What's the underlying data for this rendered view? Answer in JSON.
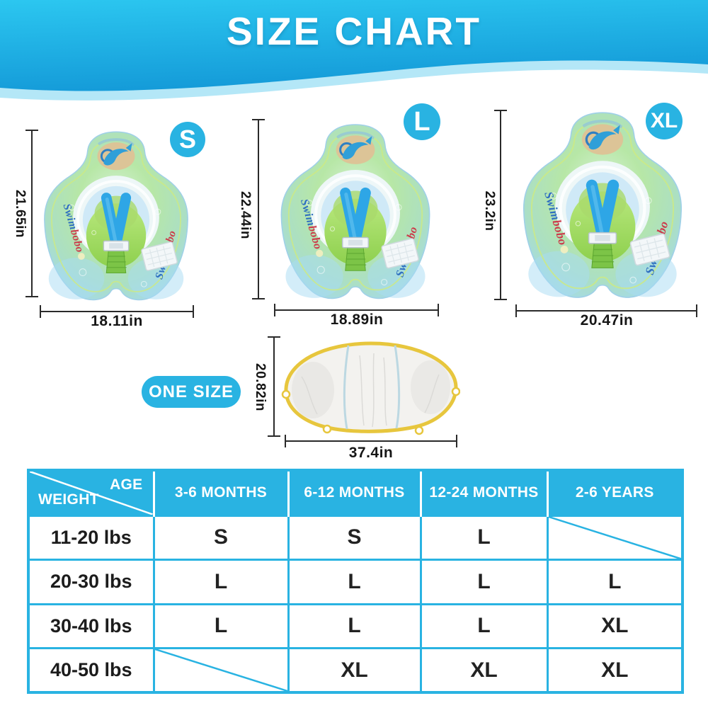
{
  "banner": {
    "title": "SIZE CHART"
  },
  "brand": {
    "name_part1": "Swim",
    "name_part2": "bobo"
  },
  "floats": [
    {
      "badge": "S",
      "height_label": "21.65in",
      "width_label": "18.11in"
    },
    {
      "badge": "L",
      "height_label": "22.44in",
      "width_label": "18.89in"
    },
    {
      "badge": "XL",
      "height_label": "23.2in",
      "width_label": "20.47in"
    }
  ],
  "canopy": {
    "badge": "ONE SIZE",
    "height_label": "20.82in",
    "width_label": "37.4in"
  },
  "size_table": {
    "corner": {
      "age": "AGE",
      "weight": "WEIGHT"
    },
    "age_columns": [
      "3-6 MONTHS",
      "6-12 MONTHS",
      "12-24 MONTHS",
      "2-6 YEARS"
    ],
    "rows": [
      {
        "weight": "11-20 lbs",
        "sizes": [
          "S",
          "S",
          "L",
          ""
        ]
      },
      {
        "weight": "20-30 lbs",
        "sizes": [
          "L",
          "L",
          "L",
          "L"
        ]
      },
      {
        "weight": "30-40 lbs",
        "sizes": [
          "L",
          "L",
          "L",
          "XL"
        ]
      },
      {
        "weight": "40-50 lbs",
        "sizes": [
          "",
          "XL",
          "XL",
          "XL"
        ]
      }
    ]
  },
  "colors": {
    "accent_cyan": "#29b3e2",
    "banner_gradient_top": "#2cc7f0",
    "banner_gradient_bottom": "#149ad8",
    "wave_light": "#b4e7f7",
    "canopy_trim": "#e7c63d",
    "float_green": "#b7e7a6",
    "float_blue_edge": "#a2d8f2",
    "strap_blue": "#2ea6e6",
    "dimension_line": "#2a2a2a"
  }
}
